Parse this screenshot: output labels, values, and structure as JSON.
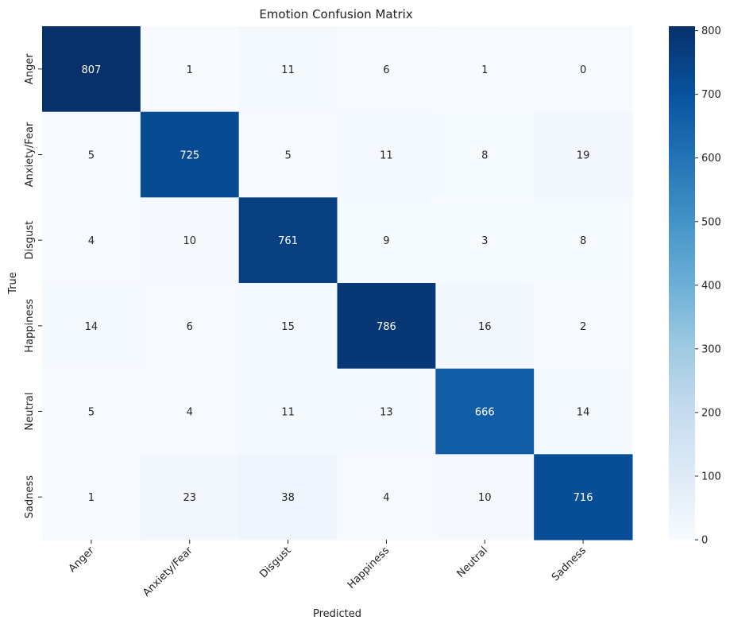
{
  "chart_data": {
    "type": "heatmap",
    "title": "Emotion Confusion Matrix",
    "xlabel": "Predicted",
    "ylabel": "True",
    "x_categories": [
      "Anger",
      "Anxiety/Fear",
      "Disgust",
      "Happiness",
      "Neutral",
      "Sadness"
    ],
    "y_categories": [
      "Anger",
      "Anxiety/Fear",
      "Disgust",
      "Happiness",
      "Neutral",
      "Sadness"
    ],
    "values": [
      [
        807,
        1,
        11,
        6,
        1,
        0
      ],
      [
        5,
        725,
        5,
        11,
        8,
        19
      ],
      [
        4,
        10,
        761,
        9,
        3,
        8
      ],
      [
        14,
        6,
        15,
        786,
        16,
        2
      ],
      [
        5,
        4,
        11,
        13,
        666,
        14
      ],
      [
        1,
        23,
        38,
        4,
        10,
        716
      ]
    ],
    "colorbar": {
      "range": [
        0,
        807
      ],
      "ticks": [
        0,
        100,
        200,
        300,
        400,
        500,
        600,
        700,
        800
      ],
      "colormap": "Blues",
      "colors": [
        "#f7fbff",
        "#deebf7",
        "#c6dbef",
        "#9ecae1",
        "#6baed6",
        "#4292c6",
        "#2171b5",
        "#08519c",
        "#08306b"
      ]
    },
    "annotations": true,
    "grid": false,
    "x_tick_rotation_deg": 45,
    "y_tick_rotation_deg": 90
  }
}
